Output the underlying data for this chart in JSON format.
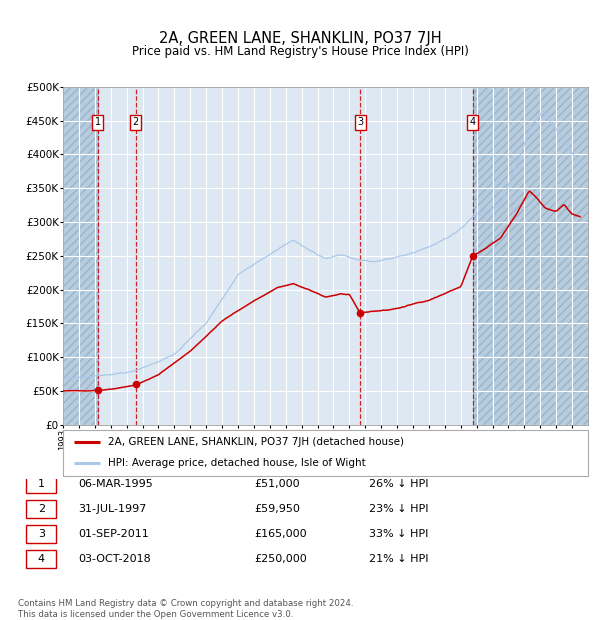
{
  "title": "2A, GREEN LANE, SHANKLIN, PO37 7JH",
  "subtitle": "Price paid vs. HM Land Registry's House Price Index (HPI)",
  "ylim": [
    0,
    500000
  ],
  "yticks": [
    0,
    50000,
    100000,
    150000,
    200000,
    250000,
    300000,
    350000,
    400000,
    450000,
    500000
  ],
  "ytick_labels": [
    "£0",
    "£50K",
    "£100K",
    "£150K",
    "£200K",
    "£250K",
    "£300K",
    "£350K",
    "£400K",
    "£450K",
    "£500K"
  ],
  "xlim_start": 1993.0,
  "xlim_end": 2026.0,
  "hpi_color": "#aac8e8",
  "price_color": "#cc0000",
  "bg_color": "#dde8f3",
  "grid_color": "#ffffff",
  "dashed_line_color": "#cc0000",
  "purchases": [
    {
      "date_year": 1995.17,
      "price": 51000,
      "label": "1"
    },
    {
      "date_year": 1997.58,
      "price": 59950,
      "label": "2"
    },
    {
      "date_year": 2011.67,
      "price": 165000,
      "label": "3"
    },
    {
      "date_year": 2018.75,
      "price": 250000,
      "label": "4"
    }
  ],
  "legend_entries": [
    {
      "label": "2A, GREEN LANE, SHANKLIN, PO37 7JH (detached house)",
      "color": "#cc0000"
    },
    {
      "label": "HPI: Average price, detached house, Isle of Wight",
      "color": "#aac8e8"
    }
  ],
  "table_rows": [
    {
      "num": "1",
      "date": "06-MAR-1995",
      "price": "£51,000",
      "hpi": "26% ↓ HPI"
    },
    {
      "num": "2",
      "date": "31-JUL-1997",
      "price": "£59,950",
      "hpi": "23% ↓ HPI"
    },
    {
      "num": "3",
      "date": "01-SEP-2011",
      "price": "£165,000",
      "hpi": "33% ↓ HPI"
    },
    {
      "num": "4",
      "date": "03-OCT-2018",
      "price": "£250,000",
      "hpi": "21% ↓ HPI"
    }
  ],
  "footer": "Contains HM Land Registry data © Crown copyright and database right 2024.\nThis data is licensed under the Open Government Licence v3.0."
}
